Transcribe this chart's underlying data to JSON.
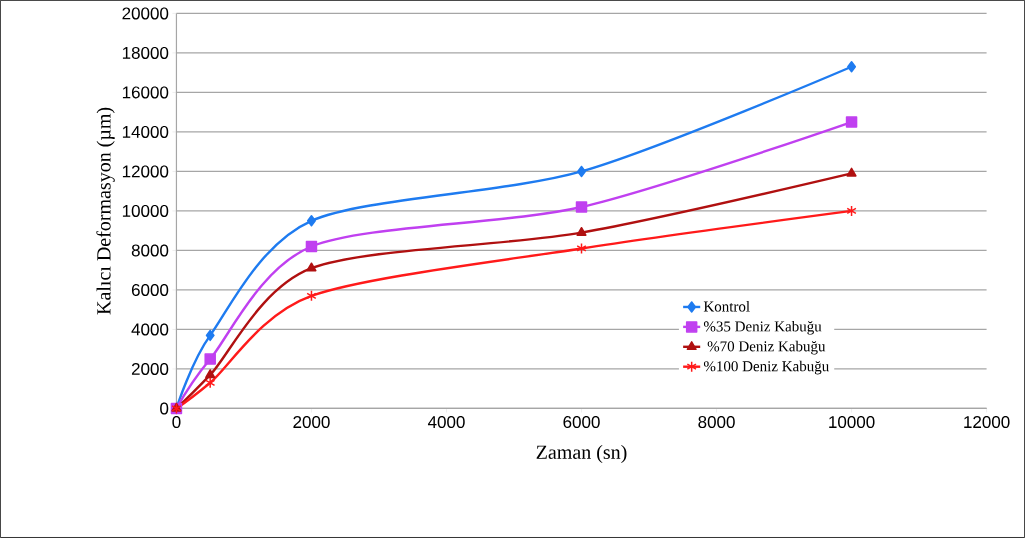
{
  "chart_data": {
    "type": "line",
    "xlabel": "Zaman (sn)",
    "ylabel": "Kalıcı Deformasyon (µm)",
    "xlim": [
      0,
      12000
    ],
    "xticks": [
      0,
      2000,
      4000,
      6000,
      8000,
      10000,
      12000
    ],
    "ylim": [
      0,
      20000
    ],
    "yticks": [
      0,
      2000,
      4000,
      6000,
      8000,
      10000,
      12000,
      14000,
      16000,
      18000,
      20000
    ],
    "grid": "y",
    "legend": "right",
    "line_style": "solid",
    "series": [
      {
        "name": "Kontrol",
        "color": "#1e7bf0",
        "marker": "diamond",
        "x": [
          0,
          500,
          2000,
          6000,
          10000
        ],
        "values": [
          0,
          3700,
          9500,
          12000,
          17300
        ]
      },
      {
        "name": "%35 Deniz Kabuğu",
        "color": "#c040f0",
        "marker": "square",
        "x": [
          0,
          500,
          2000,
          6000,
          10000
        ],
        "values": [
          0,
          2500,
          8200,
          10200,
          14500
        ]
      },
      {
        "name": " %70 Deniz Kabuğu",
        "color": "#b01010",
        "marker": "triangle",
        "x": [
          0,
          500,
          2000,
          6000,
          10000
        ],
        "values": [
          0,
          1700,
          7100,
          8900,
          11900
        ]
      },
      {
        "name": "%100 Deniz Kabuğu",
        "color": "#ff1a1a",
        "marker": "cross",
        "x": [
          0,
          500,
          2000,
          6000,
          10000
        ],
        "values": [
          0,
          1300,
          5700,
          8100,
          10000
        ]
      }
    ]
  }
}
